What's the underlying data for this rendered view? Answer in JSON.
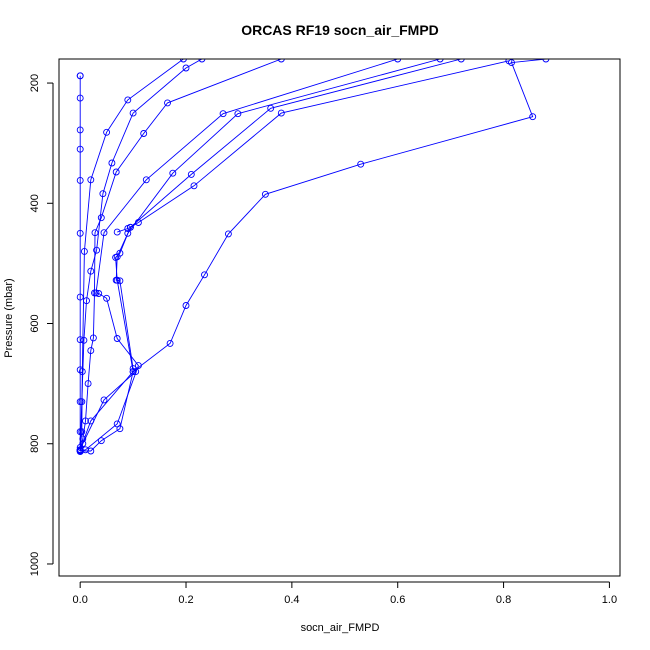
{
  "chart_data": {
    "type": "line",
    "title": "ORCAS RF19 socn_air_FMPD",
    "xlabel": "socn_air_FMPD",
    "ylabel": "Pressure (mbar)",
    "xlim": [
      -0.04,
      1.02
    ],
    "ylim": [
      1020,
      160
    ],
    "y_inverted": true,
    "xticks": [
      0.0,
      0.2,
      0.4,
      0.6,
      0.8,
      1.0
    ],
    "xtick_labels": [
      "0.0",
      "0.2",
      "0.4",
      "0.6",
      "0.8",
      "1.0"
    ],
    "yticks": [
      200,
      400,
      600,
      800,
      1000
    ],
    "ytick_labels": [
      "200",
      "400",
      "600",
      "800",
      "1000"
    ],
    "grid": false,
    "series_color": "#0000ff",
    "series": [
      {
        "x": [
          0.0,
          0.0,
          0.0,
          0.0,
          0.0,
          0.0,
          0.0,
          0.0,
          0.0,
          0.0,
          0.0,
          0.0,
          0.0,
          0.0,
          0.0,
          0.0
        ],
        "y": [
          188,
          188,
          225,
          278,
          310,
          362,
          450,
          556,
          627,
          677,
          730,
          780,
          806,
          810,
          812,
          813
        ]
      },
      {
        "x": [
          0.195,
          0.09,
          0.05,
          0.02,
          0.008,
          0.004,
          0.003,
          0.0
        ],
        "y": [
          160,
          228,
          282,
          361,
          480,
          680,
          780,
          810
        ]
      },
      {
        "x": [
          0.23,
          0.2,
          0.1,
          0.06,
          0.043,
          0.031,
          0.02,
          0.012,
          0.007,
          0.003,
          0.0
        ],
        "y": [
          160,
          175,
          250,
          333,
          384,
          478,
          513,
          562,
          628,
          730,
          810
        ]
      },
      {
        "x": [
          0.38,
          0.165,
          0.12,
          0.068,
          0.04,
          0.028,
          0.027,
          0.025,
          0.02,
          0.015,
          0.01,
          0.005,
          0.0
        ],
        "y": [
          160,
          233,
          284,
          348,
          424,
          449,
          549,
          624,
          645,
          700,
          762,
          792,
          810
        ]
      },
      {
        "x": [
          0.6,
          0.27,
          0.125,
          0.045,
          0.03,
          0.035,
          0.05,
          0.07,
          0.11,
          0.07,
          0.01,
          0.0
        ],
        "y": [
          160,
          251,
          361,
          449,
          549,
          550,
          558,
          625,
          670,
          767,
          810,
          812
        ]
      },
      {
        "x": [
          0.68,
          0.298,
          0.175,
          0.09,
          0.07,
          0.068,
          0.075,
          0.1,
          0.105,
          0.045,
          0.005,
          0.0
        ],
        "y": [
          160,
          251,
          350,
          450,
          489,
          528,
          529,
          675,
          680,
          727,
          800,
          812
        ]
      },
      {
        "x": [
          0.72,
          0.36,
          0.21,
          0.095,
          0.075,
          0.067,
          0.07,
          0.1,
          0.02,
          0.0
        ],
        "y": [
          160,
          242,
          352,
          440,
          483,
          490,
          528,
          680,
          762,
          810
        ]
      },
      {
        "x": [
          0.81,
          0.38,
          0.215,
          0.11,
          0.095,
          0.09,
          0.07
        ],
        "y": [
          163,
          250,
          371,
          432,
          440,
          442,
          448
        ]
      },
      {
        "x": [
          0.88,
          0.815,
          0.855,
          0.53,
          0.35,
          0.28,
          0.235,
          0.2,
          0.17,
          0.1,
          0.075,
          0.04,
          0.02,
          0.0
        ],
        "y": [
          160,
          166,
          256,
          335,
          385,
          451,
          519,
          570,
          633,
          680,
          775,
          795,
          812,
          812
        ]
      }
    ]
  }
}
